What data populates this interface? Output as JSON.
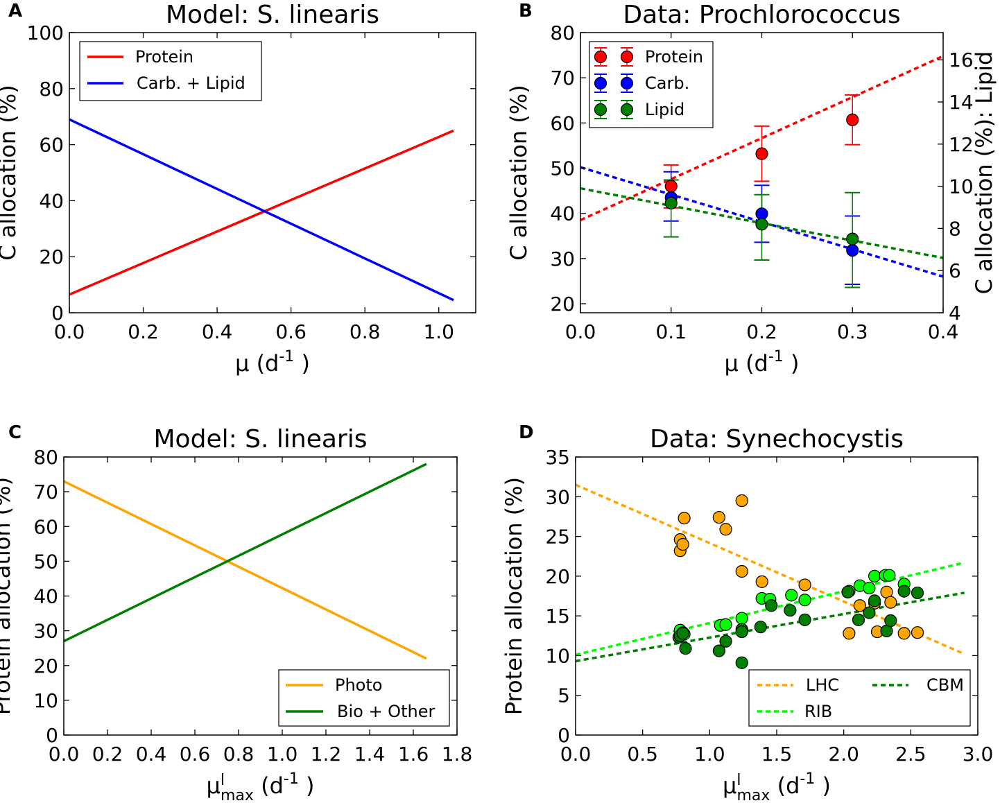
{
  "figure": {
    "panels": [
      "A",
      "B",
      "C",
      "D"
    ]
  },
  "colors": {
    "red": "#ff0000",
    "blue": "#0000ff",
    "green": "#007f00",
    "orange": "#ffa500",
    "lime": "#00ff00",
    "olive_green": "#006400",
    "dark_green": "#007f00"
  },
  "chart_data": [
    {
      "panel": "A",
      "type": "line",
      "title": "Model: S. linearis",
      "xlabel": "μ (d-1 )",
      "ylabel": "C allocation (%)",
      "xlim": [
        0.0,
        1.1
      ],
      "ylim": [
        0,
        100
      ],
      "xticks": [
        "0.0",
        "0.2",
        "0.4",
        "0.6",
        "0.8",
        "1.0"
      ],
      "yticks": [
        "0",
        "20",
        "40",
        "60",
        "80",
        "100"
      ],
      "legend": "top-left",
      "series": [
        {
          "name": "Protein",
          "color": "#ff0000",
          "x": [
            0.0,
            1.04
          ],
          "y": [
            6.5,
            65
          ]
        },
        {
          "name": "Carb. + Lipid",
          "color": "#0000ff",
          "x": [
            0.0,
            1.04
          ],
          "y": [
            69,
            4.5
          ]
        }
      ]
    },
    {
      "panel": "B",
      "type": "scatter",
      "title": "Data: Prochlorococcus",
      "xlabel": "μ (d-1 )",
      "ylabel": "C allocation (%)",
      "ylabel_right": "C allocation (%): Lipid",
      "xlim": [
        0.0,
        0.4
      ],
      "ylim": [
        18,
        80
      ],
      "ylim_right": [
        4,
        17.29
      ],
      "xticks": [
        "0.0",
        "0.1",
        "0.2",
        "0.3",
        "0.4"
      ],
      "yticks": [
        "20",
        "30",
        "40",
        "50",
        "60",
        "70",
        "80"
      ],
      "yticks_right": [
        "4",
        "6",
        "8",
        "10",
        "12",
        "14",
        "16"
      ],
      "legend": "top-left",
      "series": [
        {
          "name": "Protein",
          "color": "#ff0000",
          "axis": "left",
          "x": [
            0.1,
            0.2,
            0.3
          ],
          "y": [
            46,
            53.2,
            60.7
          ],
          "err_low": [
            41.2,
            47.1,
            55.2
          ],
          "err_high": [
            50.7,
            59.3,
            66.2
          ],
          "fit": [
            [
              0.0,
              38.5
            ],
            [
              0.4,
              74.8
            ]
          ]
        },
        {
          "name": "Carb.",
          "color": "#0000ff",
          "axis": "left",
          "x": [
            0.1,
            0.2,
            0.3
          ],
          "y": [
            43.5,
            39.9,
            31.8
          ],
          "err_low": [
            38.3,
            33.6,
            24.3
          ],
          "err_high": [
            49.2,
            46.2,
            39.4
          ],
          "fit": [
            [
              0.0,
              50.2
            ],
            [
              0.4,
              26.0
            ]
          ]
        },
        {
          "name": "Lipid",
          "color": "#007f00",
          "axis": "right",
          "x": [
            0.1,
            0.2,
            0.3
          ],
          "y": [
            9.2,
            8.2,
            7.5
          ],
          "err_low": [
            7.6,
            6.5,
            5.2
          ],
          "err_high": [
            10.3,
            9.6,
            9.7
          ],
          "fit": [
            [
              0.0,
              9.9
            ],
            [
              0.4,
              6.6
            ]
          ]
        }
      ]
    },
    {
      "panel": "C",
      "type": "line",
      "title": "Model: S. linearis",
      "xlabel": "μ max (d-1 )",
      "ylabel": "Protein allocation (%)",
      "xlim": [
        0.0,
        1.8
      ],
      "ylim": [
        0,
        80
      ],
      "xticks": [
        "0.0",
        "0.2",
        "0.4",
        "0.6",
        "0.8",
        "1.0",
        "1.2",
        "1.4",
        "1.6",
        "1.8"
      ],
      "yticks": [
        "0",
        "10",
        "20",
        "30",
        "40",
        "50",
        "60",
        "70",
        "80"
      ],
      "legend": "bottom-right",
      "series": [
        {
          "name": "Photo",
          "color": "#ffa500",
          "x": [
            0.0,
            1.66
          ],
          "y": [
            73,
            22
          ]
        },
        {
          "name": "Bio + Other",
          "color": "#007f00",
          "x": [
            0.0,
            1.66
          ],
          "y": [
            27,
            78
          ]
        }
      ]
    },
    {
      "panel": "D",
      "type": "scatter",
      "title": "Data: Synechocystis",
      "xlabel": "μ max (d-1 )",
      "ylabel": "Protein allocation (%)",
      "xlim": [
        0.0,
        3.0
      ],
      "ylim": [
        0,
        35
      ],
      "xticks": [
        "0.0",
        "0.5",
        "1.0",
        "1.5",
        "2.0",
        "2.5",
        "3.0"
      ],
      "yticks": [
        "0",
        "5",
        "10",
        "15",
        "20",
        "25",
        "30",
        "35"
      ],
      "legend": "bottom-right",
      "series": [
        {
          "name": "LHC",
          "color": "#ffa500",
          "fit": [
            [
              0.0,
              31.5
            ],
            [
              2.9,
              10.2
            ]
          ],
          "x": [
            0.78,
            0.78,
            0.8,
            0.81,
            1.07,
            1.12,
            1.24,
            1.24,
            1.39,
            1.71,
            2.04,
            2.12,
            2.23,
            2.25,
            2.32,
            2.35,
            2.45,
            2.55
          ],
          "y": [
            24.6,
            23.2,
            24.0,
            27.3,
            27.4,
            25.9,
            29.5,
            20.6,
            19.3,
            18.9,
            12.8,
            16.3,
            16.6,
            13.0,
            18.0,
            16.7,
            12.8,
            12.9
          ]
        },
        {
          "name": "RIB",
          "color": "#00ff00",
          "fit": [
            [
              0.0,
              10.1
            ],
            [
              2.9,
              21.7
            ]
          ],
          "x": [
            0.78,
            0.8,
            0.81,
            1.08,
            1.12,
            1.24,
            1.39,
            1.45,
            1.61,
            1.71,
            2.04,
            2.12,
            2.19,
            2.23,
            2.31,
            2.34,
            2.45
          ],
          "y": [
            13.2,
            12.9,
            12.7,
            13.8,
            13.9,
            14.7,
            17.2,
            17.1,
            17.6,
            17.0,
            18.1,
            18.8,
            18.5,
            20.0,
            20.1,
            20.1,
            19.0
          ]
        },
        {
          "name": "CBM",
          "color": "#007f00",
          "fit": [
            [
              0.0,
              9.3
            ],
            [
              2.9,
              17.9
            ]
          ],
          "x": [
            0.77,
            0.78,
            0.8,
            0.82,
            1.07,
            1.12,
            1.24,
            1.24,
            1.24,
            1.38,
            1.46,
            1.6,
            1.71,
            2.03,
            2.11,
            2.19,
            2.23,
            2.32,
            2.35,
            2.45,
            2.55
          ],
          "y": [
            12.3,
            12.5,
            12.8,
            10.9,
            10.6,
            11.8,
            9.1,
            13.3,
            13.0,
            13.6,
            16.3,
            15.7,
            14.5,
            18.0,
            14.5,
            15.4,
            16.9,
            13.1,
            14.4,
            18.1,
            17.9
          ]
        }
      ]
    }
  ]
}
